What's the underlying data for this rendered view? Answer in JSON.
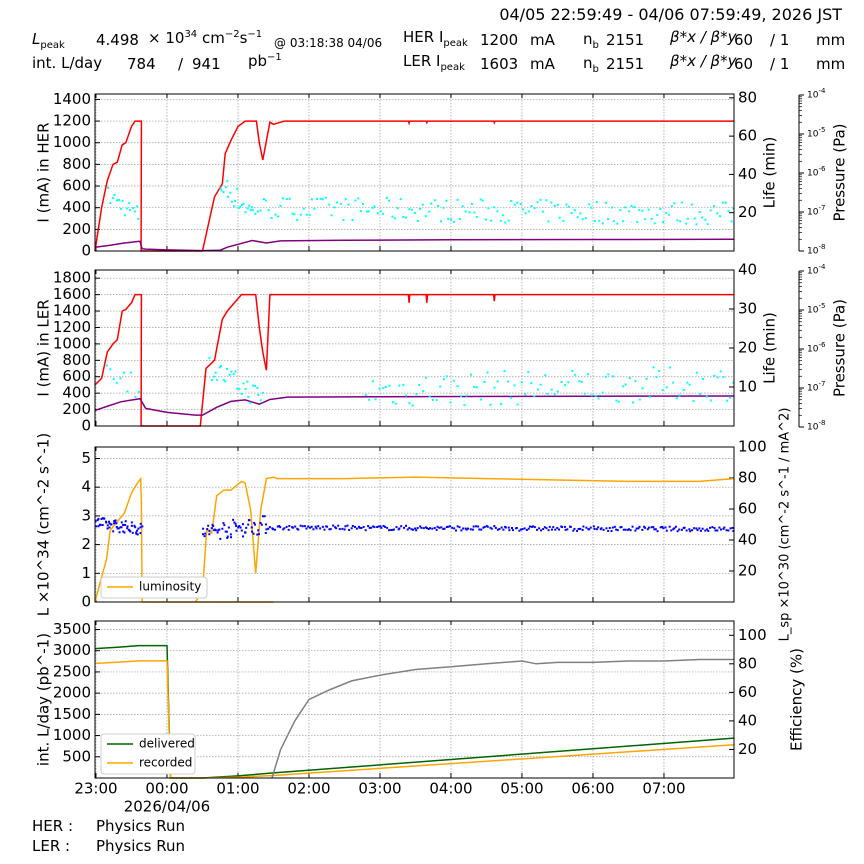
{
  "header": {
    "range": "04/05 22:59:49 - 04/06 07:59:49, 2026 JST",
    "lpeak_label": "L",
    "lpeak_sub": "peak",
    "lpeak_value": "4.498",
    "lpeak_mult": "× 10",
    "lpeak_exp": "34",
    "lpeak_unit": "cm",
    "lpeak_unit_exp1": "−2",
    "lpeak_unit_s": "s",
    "lpeak_unit_exp2": "−1",
    "lpeak_time": "@ 03:18:38 04/06",
    "intl_label": "int. L/day",
    "intl_value1": "784",
    "intl_sep": "/",
    "intl_value2": "941",
    "intl_unit": "pb",
    "intl_unit_exp": "−1",
    "her_label": "HER I",
    "her_sub": "peak",
    "her_value": "1200",
    "her_unit": "mA",
    "her_nb_label": "n",
    "her_nb_sub": "b",
    "her_nb": "2151",
    "her_beta": "β*x / β*y",
    "her_beta_x": "60",
    "her_beta_y": "/ 1",
    "her_beta_unit": "mm",
    "ler_label": "LER I",
    "ler_sub": "peak",
    "ler_value": "1603",
    "ler_unit": "mA",
    "ler_nb_label": "n",
    "ler_nb_sub": "b",
    "ler_nb": "2151",
    "ler_beta": "β*x / β*y",
    "ler_beta_x": "60",
    "ler_beta_y": "/ 1",
    "ler_beta_unit": "mm"
  },
  "footer": {
    "her_label": "HER :",
    "her_status": "Physics Run",
    "ler_label": "LER :",
    "ler_status": "Physics Run"
  },
  "colors": {
    "current": "#ff0000",
    "lifetime": "#800080",
    "pressure": "#00ffff",
    "luminosity": "#ffa500",
    "specific": "#0000ff",
    "delivered": "#006400",
    "recorded": "#ffa500",
    "efficiency": "#808080",
    "grid": "#999999"
  },
  "chart_data": [
    {
      "type": "line",
      "ylabel": "I (mA) in HER",
      "ylabel2": "Life (min)",
      "ylabel3": "Pressure (Pa)",
      "xlim": [
        -0.0136,
        8.9864
      ],
      "ylim": [
        0,
        1450
      ],
      "yticks": [
        0,
        200,
        400,
        600,
        800,
        1000,
        1200,
        1400
      ],
      "ylim2": [
        0,
        82
      ],
      "yticks2": [
        20,
        40,
        60,
        80
      ],
      "ylim3_log10": [
        -8,
        -4
      ],
      "yticks3_log10": [
        -8,
        -7,
        -6,
        -5,
        -4
      ],
      "series": [
        {
          "role": "current",
          "x": [
            -0.0136,
            0.08,
            0.16,
            0.24,
            0.3,
            0.37,
            0.42,
            0.5,
            0.55,
            0.62,
            0.64,
            0.635,
            0.65,
            1.5,
            1.67,
            1.78,
            1.82,
            1.9,
            2.0,
            2.1,
            2.18,
            2.26,
            2.3,
            2.35,
            2.45,
            2.5,
            2.65,
            4.4,
            4.41,
            4.42,
            4.65,
            4.66,
            4.67,
            5.6,
            5.61,
            5.62,
            8.9864
          ],
          "y": [
            0,
            400,
            650,
            800,
            820,
            980,
            1000,
            1150,
            1200,
            1200,
            1200,
            0,
            0,
            0,
            500,
            620,
            900,
            1020,
            1150,
            1200,
            1200,
            1200,
            1000,
            840,
            1190,
            1170,
            1200,
            1200,
            1180,
            1200,
            1200,
            1185,
            1200,
            1200,
            1185,
            1200,
            1200
          ]
        },
        {
          "role": "lifetime",
          "x": [
            -0.0136,
            0.2,
            0.4,
            0.6,
            0.62,
            0.65,
            0.7,
            1.0,
            1.5,
            1.75,
            1.85,
            2.0,
            2.2,
            2.4,
            2.6,
            3.5,
            5.0,
            7.0,
            8.9864
          ],
          "y": [
            2,
            3,
            4.2,
            5,
            5,
            1.2,
            1.0,
            0.6,
            0.2,
            0.4,
            2,
            3.5,
            5.5,
            4.2,
            5.3,
            5.6,
            5.9,
            6.0,
            6.1
          ]
        },
        {
          "role": "pressure",
          "style": "scatter",
          "y_log10": true,
          "segments": [
            {
              "x": [
                0.18,
                0.6
              ],
              "y": [
                -6.6,
                -7.1
              ],
              "n": 16,
              "jitter": 0.25
            },
            {
              "x": [
                1.75,
                2.2
              ],
              "y": [
                -6.3,
                -7.0
              ],
              "n": 20,
              "jitter": 0.3
            },
            {
              "x": [
                2.2,
                8.9864
              ],
              "y": [
                -6.9,
                -7.05
              ],
              "n": 170,
              "jitter": 0.3
            }
          ]
        }
      ]
    },
    {
      "type": "line",
      "ylabel": "I (mA) in LER",
      "ylabel2": "Life (min)",
      "ylabel3": "Pressure (Pa)",
      "xlim": [
        -0.0136,
        8.9864
      ],
      "ylim": [
        0,
        1900
      ],
      "yticks": [
        0,
        200,
        400,
        600,
        800,
        1000,
        1200,
        1400,
        1600,
        1800
      ],
      "ylim2": [
        0,
        40
      ],
      "yticks2": [
        10,
        20,
        30,
        40
      ],
      "ylim3_log10": [
        -8,
        -4
      ],
      "yticks3_log10": [
        -8,
        -7,
        -6,
        -5,
        -4
      ],
      "series": [
        {
          "role": "current",
          "x": [
            -0.0136,
            0.08,
            0.16,
            0.24,
            0.3,
            0.37,
            0.42,
            0.5,
            0.55,
            0.62,
            0.64,
            0.635,
            0.65,
            1.47,
            1.55,
            1.67,
            1.78,
            1.85,
            1.95,
            2.05,
            2.15,
            2.25,
            2.3,
            2.35,
            2.4,
            2.45,
            2.5,
            2.6,
            4.4,
            4.41,
            4.42,
            4.65,
            4.66,
            4.67,
            5.6,
            5.61,
            5.62,
            8.9864
          ],
          "y": [
            500,
            580,
            900,
            1000,
            1050,
            1400,
            1420,
            1500,
            1600,
            1600,
            1600,
            0,
            0,
            0,
            700,
            800,
            1300,
            1400,
            1500,
            1600,
            1600,
            1600,
            1200,
            900,
            680,
            1600,
            1600,
            1600,
            1600,
            1500,
            1600,
            1600,
            1500,
            1600,
            1600,
            1520,
            1600,
            1600
          ]
        },
        {
          "role": "lifetime",
          "x": [
            -0.0136,
            0.15,
            0.35,
            0.55,
            0.62,
            0.7,
            1.0,
            1.4,
            1.5,
            1.7,
            1.9,
            2.1,
            2.3,
            2.45,
            2.7,
            4.0,
            6.0,
            8.9864
          ],
          "y": [
            4,
            5,
            6.2,
            6.8,
            7,
            4.5,
            3.5,
            2.8,
            2.8,
            4.8,
            6.3,
            6.7,
            5.6,
            6.8,
            7.4,
            7.5,
            7.6,
            7.7
          ]
        },
        {
          "role": "pressure",
          "style": "scatter",
          "y_log10": true,
          "segments": [
            {
              "x": [
                0.15,
                0.6
              ],
              "y": [
                -6.4,
                -7.0
              ],
              "n": 10,
              "jitter": 0.35
            },
            {
              "x": [
                1.6,
                2.35
              ],
              "y": [
                -6.5,
                -7.3
              ],
              "n": 28,
              "jitter": 0.3
            },
            {
              "x": [
                3.8,
                8.9864
              ],
              "y": [
                -7.1,
                -6.9
              ],
              "n": 110,
              "jitter": 0.45
            }
          ]
        }
      ]
    },
    {
      "type": "line",
      "ylabel": "L ×10^34 (cm^-2 s^-1)",
      "ylabel2": "L_sp ×10^30 (cm^-2 s^-1 / mA^2)",
      "xlim": [
        -0.0136,
        8.9864
      ],
      "ylim": [
        0,
        5.4
      ],
      "yticks": [
        0,
        1,
        2,
        3,
        4,
        5
      ],
      "ylim2": [
        0,
        100
      ],
      "yticks2": [
        20,
        40,
        60,
        80,
        100
      ],
      "legend": "lower-left",
      "series": [
        {
          "role": "luminosity",
          "name": "luminosity",
          "x": [
            -0.0136,
            0.05,
            0.15,
            0.2,
            0.3,
            0.4,
            0.5,
            0.55,
            0.6,
            0.63,
            0.64,
            0.65,
            2.5,
            1.4,
            1.5,
            1.56,
            1.63,
            1.7,
            1.8,
            1.9,
            2.0,
            2.05,
            2.1,
            2.18,
            2.25,
            2.32,
            2.4,
            2.5,
            2.55,
            2.7,
            3.5,
            4.5,
            5.5,
            6.5,
            7.5,
            8.5,
            8.9864
          ],
          "y": [
            0,
            0.6,
            1.5,
            2.5,
            2.8,
            3.1,
            3.8,
            4.0,
            4.2,
            4.3,
            3.5,
            0,
            0,
            0,
            0.4,
            2.5,
            2.4,
            3.7,
            3.9,
            3.9,
            4.1,
            4.2,
            4.15,
            3.2,
            1.0,
            3.2,
            4.3,
            4.35,
            4.3,
            4.3,
            4.3,
            4.35,
            4.3,
            4.25,
            4.2,
            4.2,
            4.3
          ]
        },
        {
          "role": "specific",
          "style": "scatter",
          "segments": [
            {
              "x": [
                -0.0136,
                0.65
              ],
              "y": [
                51,
                47
              ],
              "n": 60,
              "jitter": 4
            },
            {
              "x": [
                1.5,
                2.4
              ],
              "y": [
                45,
                50
              ],
              "n": 60,
              "jitter": 6
            },
            {
              "x": [
                2.4,
                8.9864
              ],
              "y": [
                48,
                47
              ],
              "n": 260,
              "jitter": 1.5
            }
          ]
        }
      ]
    },
    {
      "type": "line",
      "ylabel": "int. L/day (pb^-1)",
      "ylabel2": "Efficiency (%)",
      "xlim": [
        -0.0136,
        8.9864
      ],
      "ylim": [
        0,
        3700
      ],
      "yticks": [
        500,
        1000,
        1500,
        2000,
        2500,
        3000,
        3500
      ],
      "ylim2": [
        0,
        110
      ],
      "yticks2": [
        20,
        40,
        60,
        80,
        100
      ],
      "legend": "lower-left",
      "xticks": [
        "23:00",
        "00:00",
        "01:00",
        "02:00",
        "03:00",
        "04:00",
        "05:00",
        "06:00",
        "07:00"
      ],
      "xdate": "2026/04/06",
      "series": [
        {
          "role": "delivered",
          "name": "delivered",
          "x": [
            -0.0136,
            0.3,
            0.6,
            1.0,
            1.0,
            1.05,
            1.5,
            2.0,
            2.5,
            8.9864
          ],
          "y": [
            3050,
            3080,
            3120,
            3120,
            3120,
            0,
            0,
            50,
            120,
            941
          ]
        },
        {
          "role": "recorded",
          "name": "recorded",
          "x": [
            -0.0136,
            0.3,
            0.6,
            1.0,
            1.0,
            1.05,
            1.5,
            2.0,
            2.5,
            8.9864
          ],
          "y": [
            2700,
            2730,
            2760,
            2760,
            2760,
            0,
            0,
            20,
            60,
            784
          ]
        },
        {
          "role": "efficiency",
          "x": [
            2.48,
            2.6,
            2.8,
            3.0,
            3.3,
            3.6,
            4.0,
            4.5,
            5.0,
            5.5,
            6.0,
            6.2,
            6.5,
            7.0,
            7.5,
            8.0,
            8.5,
            8.9864
          ],
          "y": [
            0,
            20,
            40,
            55,
            62,
            68,
            72,
            76,
            78,
            80,
            82,
            80,
            81,
            81,
            82,
            82,
            83,
            83
          ]
        }
      ]
    }
  ]
}
